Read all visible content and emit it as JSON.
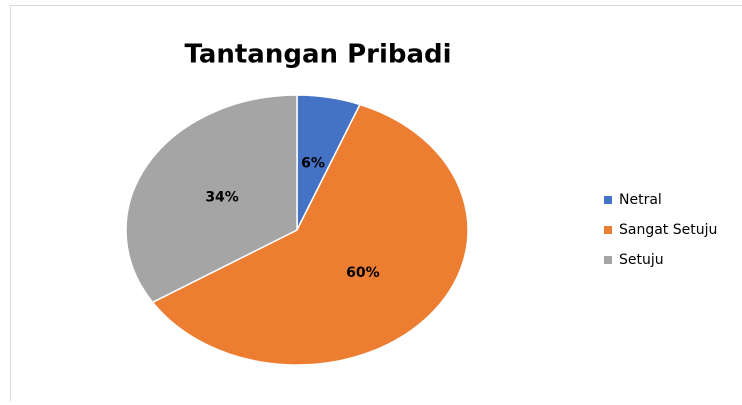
{
  "chart_data": {
    "type": "pie",
    "title": "Tantangan Pribadi",
    "categories": [
      "Netral",
      "Sangat Setuju",
      "Setuju"
    ],
    "values": [
      6,
      60,
      34
    ],
    "value_labels": [
      "6%",
      "60%",
      "34%"
    ],
    "colors": [
      "#4472c4",
      "#ed7d31",
      "#a5a5a5"
    ],
    "legend": "right"
  }
}
